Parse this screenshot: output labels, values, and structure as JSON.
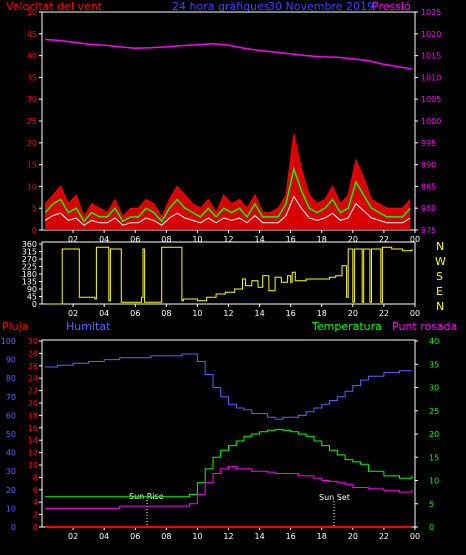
{
  "header": {
    "wind_speed": "Velocitat del vent",
    "period": "24 hora gràfiques",
    "date": "30 Novembre 2019",
    "pressure": "Pressió"
  },
  "direction_labels": [
    "N",
    "W",
    "S",
    "E",
    "N"
  ],
  "lower_header": {
    "rain": "Pluja",
    "humidity": "Humitat",
    "temperature": "Temperatura",
    "dew_point": "Punt rosada"
  },
  "annotations": {
    "sunrise": "Sun Rise",
    "sunset": "Sun Set"
  },
  "colors": {
    "wind_speed": "#ff0000",
    "wind_avg": "#00ff00",
    "wind_white": "#ffffff",
    "pressure": "#ff00ff",
    "direction": "#ffff00",
    "rain": "#ff0000",
    "humidity": "#6060ff",
    "temperature": "#00ff00",
    "dew_point": "#ff00ff",
    "axis": "#ffffff"
  },
  "chart_data": [
    {
      "type": "line",
      "id": "wind_pressure",
      "x_ticks": [
        "02",
        "04",
        "06",
        "08",
        "10",
        "12",
        "14",
        "16",
        "18",
        "20",
        "22",
        "00"
      ],
      "xlim_hours": [
        0,
        24
      ],
      "y_left_ticks": [
        0,
        5,
        10,
        15,
        20,
        25,
        30,
        35,
        40,
        45,
        50
      ],
      "y_left_lim": [
        0,
        50
      ],
      "y_right_ticks": [
        975,
        980,
        985,
        990,
        995,
        1000,
        1005,
        1010,
        1015,
        1020,
        1025
      ],
      "y_right_lim": [
        975,
        1025
      ],
      "series": [
        {
          "name": "Velocitat del vent",
          "axis": "left",
          "x": [
            0.2,
            0.7,
            1.2,
            1.7,
            2.2,
            2.7,
            3.2,
            3.7,
            4.2,
            4.7,
            5.2,
            5.7,
            6.2,
            6.7,
            7.2,
            7.7,
            8.2,
            8.7,
            9.2,
            9.7,
            10.2,
            10.7,
            11.2,
            11.7,
            12.2,
            12.7,
            13.2,
            13.7,
            14.2,
            14.7,
            15.2,
            15.7,
            16.2,
            16.7,
            17.2,
            17.7,
            18.2,
            18.7,
            19.2,
            19.7,
            20.2,
            20.7,
            21.2,
            21.7,
            22.2,
            22.7,
            23.2,
            23.7
          ],
          "values": [
            6,
            8,
            10,
            6,
            8,
            3,
            6,
            5,
            4,
            7,
            3,
            5,
            5,
            7,
            6,
            3,
            7,
            10,
            8,
            6,
            5,
            7,
            4,
            8,
            6,
            7,
            5,
            8,
            4,
            4,
            5,
            8,
            22,
            14,
            8,
            6,
            7,
            10,
            6,
            8,
            16,
            12,
            7,
            6,
            5,
            5,
            5,
            7
          ]
        },
        {
          "name": "",
          "axis": "left",
          "x": [
            0.2,
            0.7,
            1.2,
            1.7,
            2.2,
            2.7,
            3.2,
            3.7,
            4.2,
            4.7,
            5.2,
            5.7,
            6.2,
            6.7,
            7.2,
            7.7,
            8.2,
            8.7,
            9.2,
            9.7,
            10.2,
            10.7,
            11.2,
            11.7,
            12.2,
            12.7,
            13.2,
            13.7,
            14.2,
            14.7,
            15.2,
            15.7,
            16.2,
            16.7,
            17.2,
            17.7,
            18.2,
            18.7,
            19.2,
            19.7,
            20.2,
            20.7,
            21.2,
            21.7,
            22.2,
            22.7,
            23.2,
            23.7
          ],
          "values": [
            4,
            6,
            7,
            4,
            5,
            2,
            4,
            3,
            3,
            5,
            2,
            3,
            3,
            5,
            4,
            2,
            5,
            7,
            5,
            4,
            3,
            5,
            3,
            5,
            4,
            5,
            3,
            6,
            3,
            3,
            3,
            6,
            14,
            9,
            5,
            4,
            5,
            7,
            4,
            5,
            11,
            8,
            5,
            4,
            3,
            3,
            3,
            5
          ]
        },
        {
          "name": "Pressió",
          "axis": "right",
          "x": [
            0.2,
            1,
            2,
            3,
            4,
            5,
            6,
            7,
            8,
            9,
            10,
            11,
            12,
            13,
            14,
            15,
            16,
            17,
            18,
            19,
            20,
            21,
            22,
            23,
            23.8
          ],
          "values": [
            1018.7,
            1018.5,
            1018.1,
            1017.6,
            1017.4,
            1017.0,
            1016.7,
            1016.8,
            1017.0,
            1017.3,
            1017.5,
            1017.7,
            1017.4,
            1016.7,
            1016.2,
            1015.8,
            1015.4,
            1015.0,
            1014.7,
            1014.6,
            1014.3,
            1013.8,
            1013.0,
            1012.4,
            1011.9
          ]
        }
      ]
    },
    {
      "type": "line",
      "id": "wind_direction",
      "x_ticks": [
        "02",
        "04",
        "06",
        "08",
        "10",
        "12",
        "14",
        "16",
        "18",
        "20",
        "22",
        "00"
      ],
      "xlim_hours": [
        0,
        24
      ],
      "y_ticks": [
        0,
        45,
        90,
        135,
        180,
        225,
        270,
        315,
        360
      ],
      "ylim": [
        0,
        360
      ],
      "series": [
        {
          "name": "",
          "x": [
            0.2,
            1.2,
            1.3,
            2.3,
            2.4,
            3.4,
            3.5,
            4.2,
            4.3,
            4.4,
            5.0,
            5.1,
            6.3,
            6.4,
            6.5,
            6.6,
            7.6,
            7.7,
            8.9,
            9.0,
            9.1,
            9.9,
            10.0,
            10.6,
            11.2,
            11.8,
            12.4,
            12.9,
            13.1,
            13.5,
            13.9,
            14.2,
            14.6,
            15.0,
            15.4,
            15.8,
            16.0,
            16.1,
            16.3,
            16.6,
            17.0,
            17.5,
            18.0,
            18.5,
            18.9,
            19.3,
            19.6,
            19.7,
            20.0,
            20.1,
            20.6,
            20.7,
            21.1,
            21.2,
            21.8,
            21.9,
            22.4,
            22.5,
            23.2,
            23.8
          ],
          "values": [
            0,
            0,
            330,
            330,
            40,
            30,
            340,
            340,
            20,
            330,
            330,
            10,
            10,
            40,
            330,
            10,
            10,
            340,
            340,
            20,
            30,
            30,
            20,
            40,
            60,
            70,
            90,
            150,
            110,
            140,
            100,
            170,
            80,
            160,
            130,
            170,
            130,
            190,
            140,
            140,
            150,
            150,
            150,
            160,
            170,
            230,
            40,
            330,
            10,
            330,
            10,
            330,
            10,
            330,
            10,
            340,
            340,
            330,
            320,
            330
          ]
        }
      ]
    },
    {
      "type": "line",
      "id": "humidity_temperature",
      "x_ticks": [
        "02",
        "04",
        "06",
        "08",
        "10",
        "12",
        "14",
        "16",
        "18",
        "20",
        "22",
        "00"
      ],
      "xlim_hours": [
        0,
        24
      ],
      "y_humidity_ticks": [
        0,
        10,
        20,
        30,
        40,
        50,
        60,
        70,
        80,
        90,
        100
      ],
      "y_humidity_lim": [
        0,
        100
      ],
      "y_rain_ticks": [
        0,
        2,
        4,
        6,
        8,
        10,
        12,
        14,
        16,
        18,
        20,
        22,
        24,
        26,
        28,
        30
      ],
      "y_rain_lim": [
        0,
        30
      ],
      "y_temperature_ticks": [
        0,
        5,
        10,
        15,
        20,
        25,
        30,
        35,
        40
      ],
      "y_temperature_lim": [
        0,
        40
      ],
      "series": [
        {
          "name": "Humitat",
          "axis": "humidity",
          "x": [
            0.2,
            1,
            2,
            3,
            4,
            5,
            6,
            7,
            8,
            9,
            9.5,
            10,
            10.5,
            11,
            11.5,
            12,
            12.5,
            13,
            13.5,
            14,
            14.5,
            15,
            15.5,
            16,
            16.5,
            17,
            17.5,
            18,
            18.5,
            19,
            19.5,
            20,
            20.5,
            21,
            22,
            23,
            23.8
          ],
          "values": [
            86,
            87,
            88,
            89,
            90,
            91,
            91,
            92,
            92,
            93,
            93,
            89,
            82,
            75,
            70,
            66,
            64,
            63,
            61,
            61,
            59,
            58,
            59,
            59,
            60,
            62,
            64,
            66,
            68,
            70,
            73,
            76,
            79,
            81,
            83,
            84,
            84
          ]
        },
        {
          "name": "Temperatura",
          "axis": "temperature",
          "x": [
            0.2,
            1,
            2,
            3,
            4,
            5,
            6,
            7,
            8,
            9,
            9.5,
            10,
            10.5,
            11,
            11.5,
            12,
            12.5,
            13,
            13.5,
            14,
            14.5,
            15,
            15.5,
            16,
            16.5,
            17,
            17.5,
            18,
            18.5,
            19,
            19.5,
            20,
            20.5,
            21,
            22,
            23,
            23.8
          ],
          "values": [
            6.5,
            6.5,
            6.5,
            6.5,
            6.5,
            6.5,
            6.5,
            6.5,
            6.5,
            6.5,
            7,
            9.5,
            12.5,
            15,
            16.5,
            17.5,
            18.5,
            19.5,
            20,
            20.5,
            20.8,
            21,
            20.8,
            20.5,
            20,
            19.5,
            18.5,
            17.5,
            16.5,
            15.5,
            14.5,
            14,
            13.5,
            12,
            11,
            10.5,
            11
          ]
        },
        {
          "name": "Punt rosada",
          "axis": "temperature",
          "x": [
            0.2,
            1,
            2,
            3,
            4,
            5,
            6,
            7,
            8,
            9,
            9.5,
            10,
            10.5,
            11,
            11.5,
            12,
            12.5,
            13,
            13.5,
            14,
            14.5,
            15,
            15.5,
            16,
            16.5,
            17,
            17.5,
            18,
            18.5,
            19,
            19.5,
            20,
            20.5,
            21,
            22,
            23,
            23.8
          ],
          "values": [
            4,
            4,
            4,
            4,
            4,
            4.5,
            4.5,
            4.5,
            4.5,
            4.5,
            5,
            7,
            9.5,
            11.5,
            12.5,
            13,
            12.5,
            12.5,
            12,
            12,
            11.8,
            11.5,
            11.5,
            11.5,
            11,
            11,
            10.5,
            10,
            9.8,
            9.5,
            9.2,
            8.5,
            8.5,
            8.2,
            7.8,
            7.5,
            8
          ]
        },
        {
          "name": "Pluja",
          "axis": "rain",
          "x": [
            0.2,
            23.8
          ],
          "values": [
            0,
            0
          ]
        }
      ]
    }
  ]
}
